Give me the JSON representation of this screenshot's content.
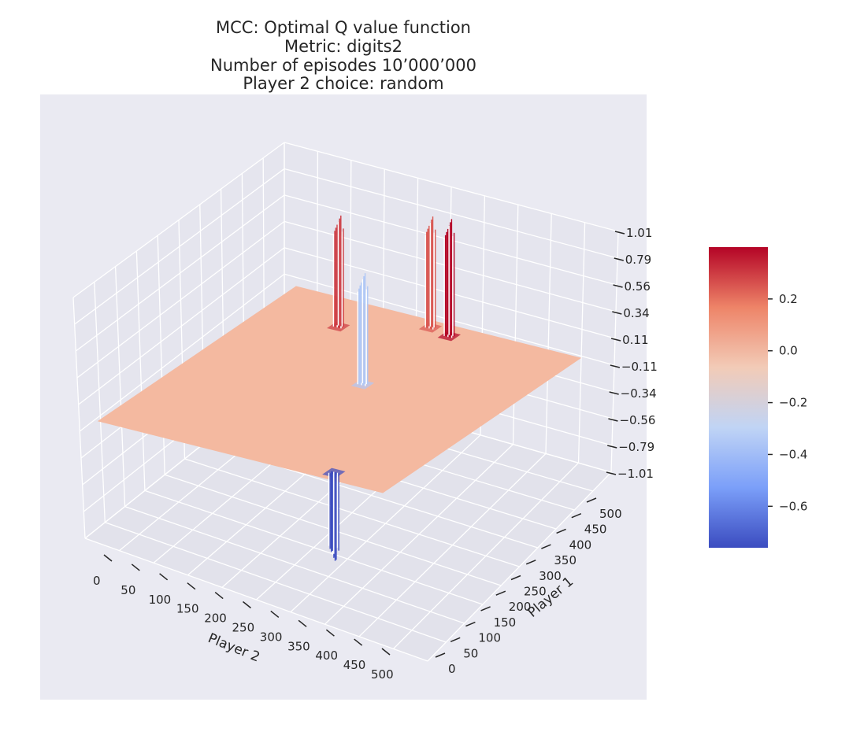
{
  "chart_data": {
    "type": "surface3d",
    "title_lines": [
      "MCC: Optimal Q value function",
      "Metric: digits2",
      "Number of episodes 10’000’000",
      "Player 2 choice: random"
    ],
    "xlabel": "Player 2",
    "ylabel": "Player 1",
    "xlim": [
      0,
      500
    ],
    "ylim": [
      0,
      500
    ],
    "zlim": [
      -1.01,
      1.01
    ],
    "x_ticks": [
      "0",
      "50",
      "100",
      "150",
      "200",
      "250",
      "300",
      "350",
      "400",
      "450",
      "500"
    ],
    "y_ticks": [
      "0",
      "50",
      "100",
      "150",
      "200",
      "250",
      "300",
      "350",
      "400",
      "450",
      "500"
    ],
    "z_ticks": [
      "−1.01",
      "−0.79",
      "−0.56",
      "−0.34",
      "−0.11",
      "0.11",
      "0.34",
      "0.56",
      "0.79",
      "1.01"
    ],
    "baseline_value": 0.0,
    "colormap": "coolwarm",
    "colorbar": {
      "ticks": [
        "0.2",
        "0.0",
        "−0.2",
        "−0.4",
        "−0.6"
      ],
      "tick_values": [
        0.2,
        0.0,
        -0.2,
        -0.4,
        -0.6
      ],
      "min": -0.76,
      "max": 0.4,
      "colors": [
        "#3b4cc0",
        "#7b9ff9",
        "#c0d4f5",
        "#f2cbb7",
        "#ee8468",
        "#b40426"
      ]
    },
    "features": [
      {
        "kind": "spike",
        "x": 130,
        "y": 420,
        "value": 0.3
      },
      {
        "kind": "spike",
        "x": 250,
        "y": 480,
        "value": 0.25
      },
      {
        "kind": "spike",
        "x": 290,
        "y": 470,
        "value": 0.4
      },
      {
        "kind": "spike",
        "x": 270,
        "y": 280,
        "value": -0.35
      },
      {
        "kind": "dip",
        "x": 400,
        "y": 20,
        "value": -0.76
      }
    ],
    "grid": true,
    "background": "#eaeaf2"
  }
}
